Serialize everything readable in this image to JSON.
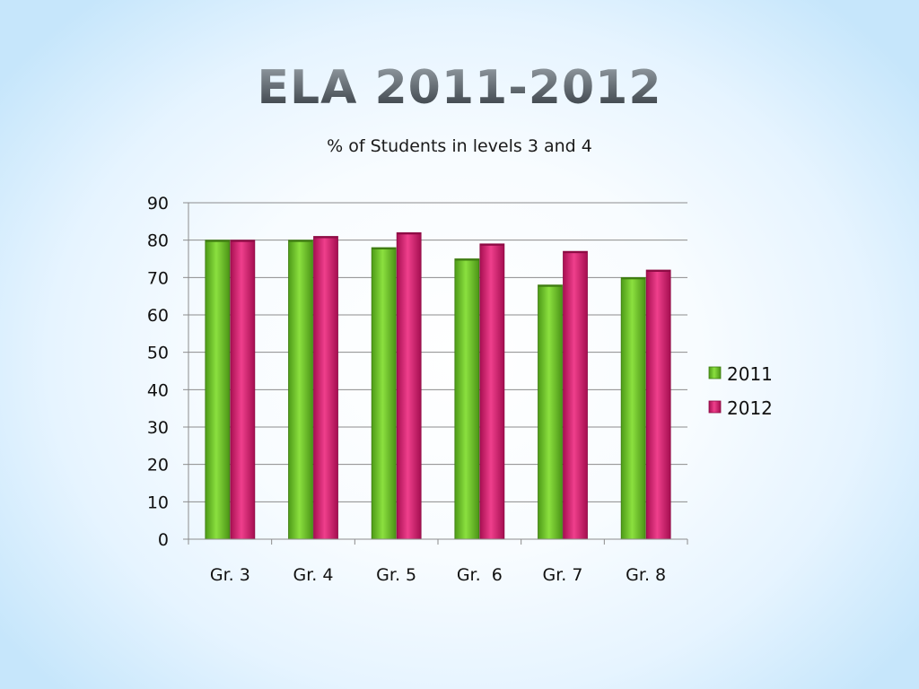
{
  "slide": {
    "title": "ELA 2011-2012",
    "subtitle": "% of Students in levels 3 and 4"
  },
  "chart_data": {
    "type": "bar",
    "title": "ELA 2011-2012",
    "subtitle": "% of Students in levels 3 and 4",
    "categories": [
      "Gr. 3",
      "Gr. 4",
      "Gr. 5",
      "Gr.  6",
      "Gr. 7",
      "Gr. 8"
    ],
    "series": [
      {
        "name": "2011",
        "values": [
          80,
          80,
          78,
          75,
          68,
          70
        ],
        "color": "#6dc22e"
      },
      {
        "name": "2012",
        "values": [
          80,
          81,
          82,
          79,
          77,
          72
        ],
        "color": "#d8166c"
      }
    ],
    "y_ticks": [
      "0",
      "10",
      "20",
      "30",
      "40",
      "50",
      "60",
      "70",
      "80",
      "90"
    ],
    "ylim": [
      0,
      90
    ],
    "grid": true,
    "legend_position": "right",
    "xlabel": "",
    "ylabel": ""
  }
}
